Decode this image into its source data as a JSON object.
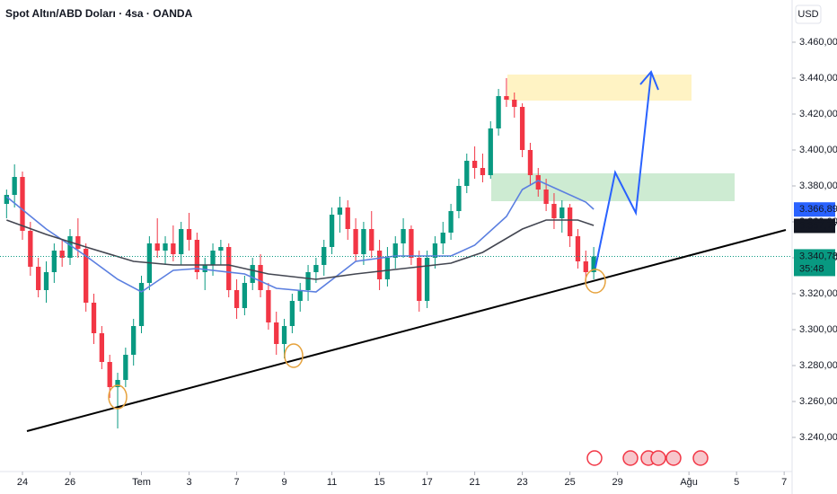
{
  "chart_data": {
    "type": "candlestick",
    "title": "Spot Altın/ABD Doları · 4sa · OANDA",
    "currency": "USD",
    "up_color": "#089981",
    "down_color": "#f23645",
    "x": [
      -2,
      -1,
      0,
      1,
      2,
      3,
      4,
      5,
      6,
      7,
      8,
      9,
      10,
      11,
      12,
      13,
      14,
      15,
      16,
      17,
      18,
      19,
      20,
      21,
      22,
      23,
      24,
      25,
      26,
      27,
      28,
      29,
      30,
      31,
      32,
      33,
      34,
      35,
      36,
      37,
      38,
      39,
      40,
      41,
      42,
      43,
      44,
      45,
      46,
      47,
      48,
      49,
      50,
      51,
      52,
      53,
      54,
      55,
      56,
      57,
      58,
      59,
      60,
      61,
      62,
      63,
      64,
      65,
      66,
      67,
      68,
      69,
      70,
      71,
      72
    ],
    "open": [
      3370,
      3375,
      3385,
      3355,
      3335,
      3322,
      3332,
      3344,
      3340,
      3352,
      3345,
      3315,
      3298,
      3282,
      3268,
      3272,
      3286,
      3302,
      3326,
      3348,
      3344,
      3348,
      3342,
      3356,
      3350,
      3332,
      3336,
      3344,
      3346,
      3322,
      3312,
      3326,
      3336,
      3322,
      3304,
      3292,
      3302,
      3316,
      3322,
      3332,
      3336,
      3346,
      3364,
      3368,
      3356,
      3342,
      3356,
      3344,
      3328,
      3340,
      3348,
      3356,
      3340,
      3316,
      3340,
      3348,
      3354,
      3366,
      3380,
      3394,
      3390,
      3386,
      3412,
      3430,
      3428,
      3424,
      3400,
      3386,
      3378,
      3370,
      3362,
      3368,
      3352,
      3338,
      3332
    ],
    "high": [
      3378,
      3392,
      3388,
      3360,
      3340,
      3338,
      3348,
      3350,
      3356,
      3362,
      3348,
      3320,
      3302,
      3286,
      3276,
      3290,
      3306,
      3330,
      3352,
      3362,
      3352,
      3358,
      3360,
      3365,
      3354,
      3340,
      3348,
      3350,
      3348,
      3328,
      3330,
      3340,
      3342,
      3326,
      3310,
      3306,
      3320,
      3326,
      3336,
      3340,
      3350,
      3368,
      3374,
      3372,
      3362,
      3360,
      3366,
      3350,
      3346,
      3352,
      3362,
      3358,
      3344,
      3344,
      3352,
      3360,
      3370,
      3384,
      3398,
      3402,
      3398,
      3416,
      3434,
      3440,
      3432,
      3426,
      3404,
      3390,
      3384,
      3376,
      3372,
      3370,
      3356,
      3344,
      3346
    ],
    "low": [
      3362,
      3368,
      3350,
      3330,
      3318,
      3315,
      3326,
      3335,
      3336,
      3340,
      3310,
      3292,
      3278,
      3262,
      3245,
      3268,
      3280,
      3298,
      3322,
      3340,
      3336,
      3338,
      3336,
      3344,
      3328,
      3322,
      3330,
      3336,
      3318,
      3306,
      3308,
      3322,
      3318,
      3300,
      3286,
      3284,
      3298,
      3310,
      3316,
      3326,
      3330,
      3342,
      3354,
      3350,
      3338,
      3336,
      3340,
      3322,
      3324,
      3334,
      3340,
      3336,
      3310,
      3312,
      3334,
      3342,
      3350,
      3362,
      3376,
      3384,
      3382,
      3384,
      3408,
      3424,
      3418,
      3396,
      3380,
      3374,
      3366,
      3356,
      3354,
      3346,
      3334,
      3326,
      3328
    ],
    "close": [
      3375,
      3385,
      3355,
      3335,
      3322,
      3332,
      3344,
      3340,
      3352,
      3345,
      3315,
      3298,
      3282,
      3268,
      3272,
      3286,
      3302,
      3326,
      3348,
      3344,
      3348,
      3342,
      3356,
      3350,
      3332,
      3336,
      3344,
      3346,
      3322,
      3312,
      3326,
      3336,
      3322,
      3304,
      3292,
      3302,
      3316,
      3322,
      3332,
      3336,
      3346,
      3364,
      3368,
      3356,
      3342,
      3356,
      3344,
      3328,
      3340,
      3348,
      3356,
      3340,
      3316,
      3340,
      3348,
      3354,
      3366,
      3380,
      3394,
      3390,
      3386,
      3412,
      3430,
      3428,
      3424,
      3400,
      3386,
      3378,
      3370,
      3362,
      3368,
      3352,
      3338,
      3332,
      3340.78
    ],
    "overlays": [
      {
        "color": "#5b7fe0",
        "x": [
          -2,
          3,
          8,
          12,
          15,
          19,
          22,
          28,
          32,
          37,
          42,
          47,
          54,
          57,
          61,
          63,
          65,
          68,
          71,
          72
        ],
        "values": [
          3374,
          3356,
          3341,
          3328,
          3321,
          3333,
          3334,
          3331,
          3323,
          3321,
          3338,
          3341,
          3341,
          3347,
          3363,
          3378,
          3383,
          3377,
          3371,
          3367
        ]
      },
      {
        "color": "#434651",
        "x": [
          -2,
          3,
          8,
          14,
          19,
          26,
          31,
          37,
          42,
          48,
          54,
          58,
          63,
          66,
          70,
          72
        ],
        "values": [
          3361,
          3353,
          3346,
          3338,
          3336,
          3336,
          3331,
          3328,
          3331,
          3334,
          3337,
          3343,
          3356,
          3361,
          3361,
          3358
        ]
      }
    ],
    "xlim": [
      -2.83,
      97
    ],
    "ylim": [
      3221,
      3483.5
    ],
    "xticks": [
      {
        "value": 0,
        "label": "24"
      },
      {
        "value": 6,
        "label": "26"
      },
      {
        "value": 15,
        "label": "Tem"
      },
      {
        "value": 21,
        "label": "3"
      },
      {
        "value": 27,
        "label": "7"
      },
      {
        "value": 33,
        "label": "9"
      },
      {
        "value": 39,
        "label": "11"
      },
      {
        "value": 45,
        "label": "15"
      },
      {
        "value": 51,
        "label": "17"
      },
      {
        "value": 57,
        "label": "21"
      },
      {
        "value": 63,
        "label": "23"
      },
      {
        "value": 69,
        "label": "25"
      },
      {
        "value": 75,
        "label": "29"
      },
      {
        "value": 84,
        "label": "Ağu"
      },
      {
        "value": 90,
        "label": "5"
      },
      {
        "value": 96,
        "label": "7"
      }
    ],
    "yticks": [
      {
        "value": 3460,
        "label": "3.460,000"
      },
      {
        "value": 3440,
        "label": "3.440,000"
      },
      {
        "value": 3420,
        "label": "3.420,000"
      },
      {
        "value": 3400,
        "label": "3.400,000"
      },
      {
        "value": 3380,
        "label": "3.380,000"
      },
      {
        "value": 3360,
        "label": "3.360,000"
      },
      {
        "value": 3340,
        "label": "3.340,000"
      },
      {
        "value": 3320,
        "label": "3.320,000"
      },
      {
        "value": 3300,
        "label": "3.300,000"
      },
      {
        "value": 3280,
        "label": "3.280,000"
      },
      {
        "value": 3260,
        "label": "3.260,000"
      },
      {
        "value": 3240,
        "label": "3.240,000"
      }
    ],
    "price_tags": [
      {
        "value": 3366.897,
        "label": "3.366,897",
        "color": "#2962ff"
      },
      {
        "value": 3357.778,
        "label": "3.357,778",
        "color": "#131722"
      },
      {
        "value": 3340.78,
        "label": "3.340,780",
        "color": "#089981",
        "countdown": "35:48"
      }
    ]
  }
}
